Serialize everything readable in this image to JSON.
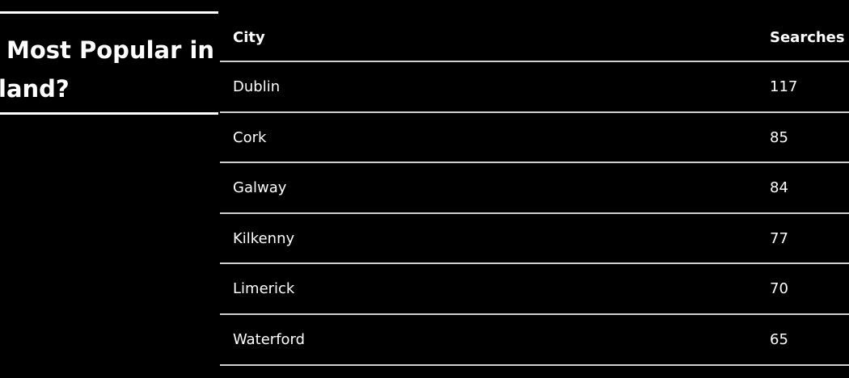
{
  "heading": {
    "lines": [
      "Most Popular in",
      "land?"
    ]
  },
  "table": {
    "columns": [
      "City",
      "Searches"
    ],
    "rows": [
      [
        "Dublin",
        117
      ],
      [
        "Cork",
        85
      ],
      [
        "Galway",
        84
      ],
      [
        "Kilkenny",
        77
      ],
      [
        "Limerick",
        70
      ],
      [
        "Waterford",
        65
      ]
    ]
  }
}
